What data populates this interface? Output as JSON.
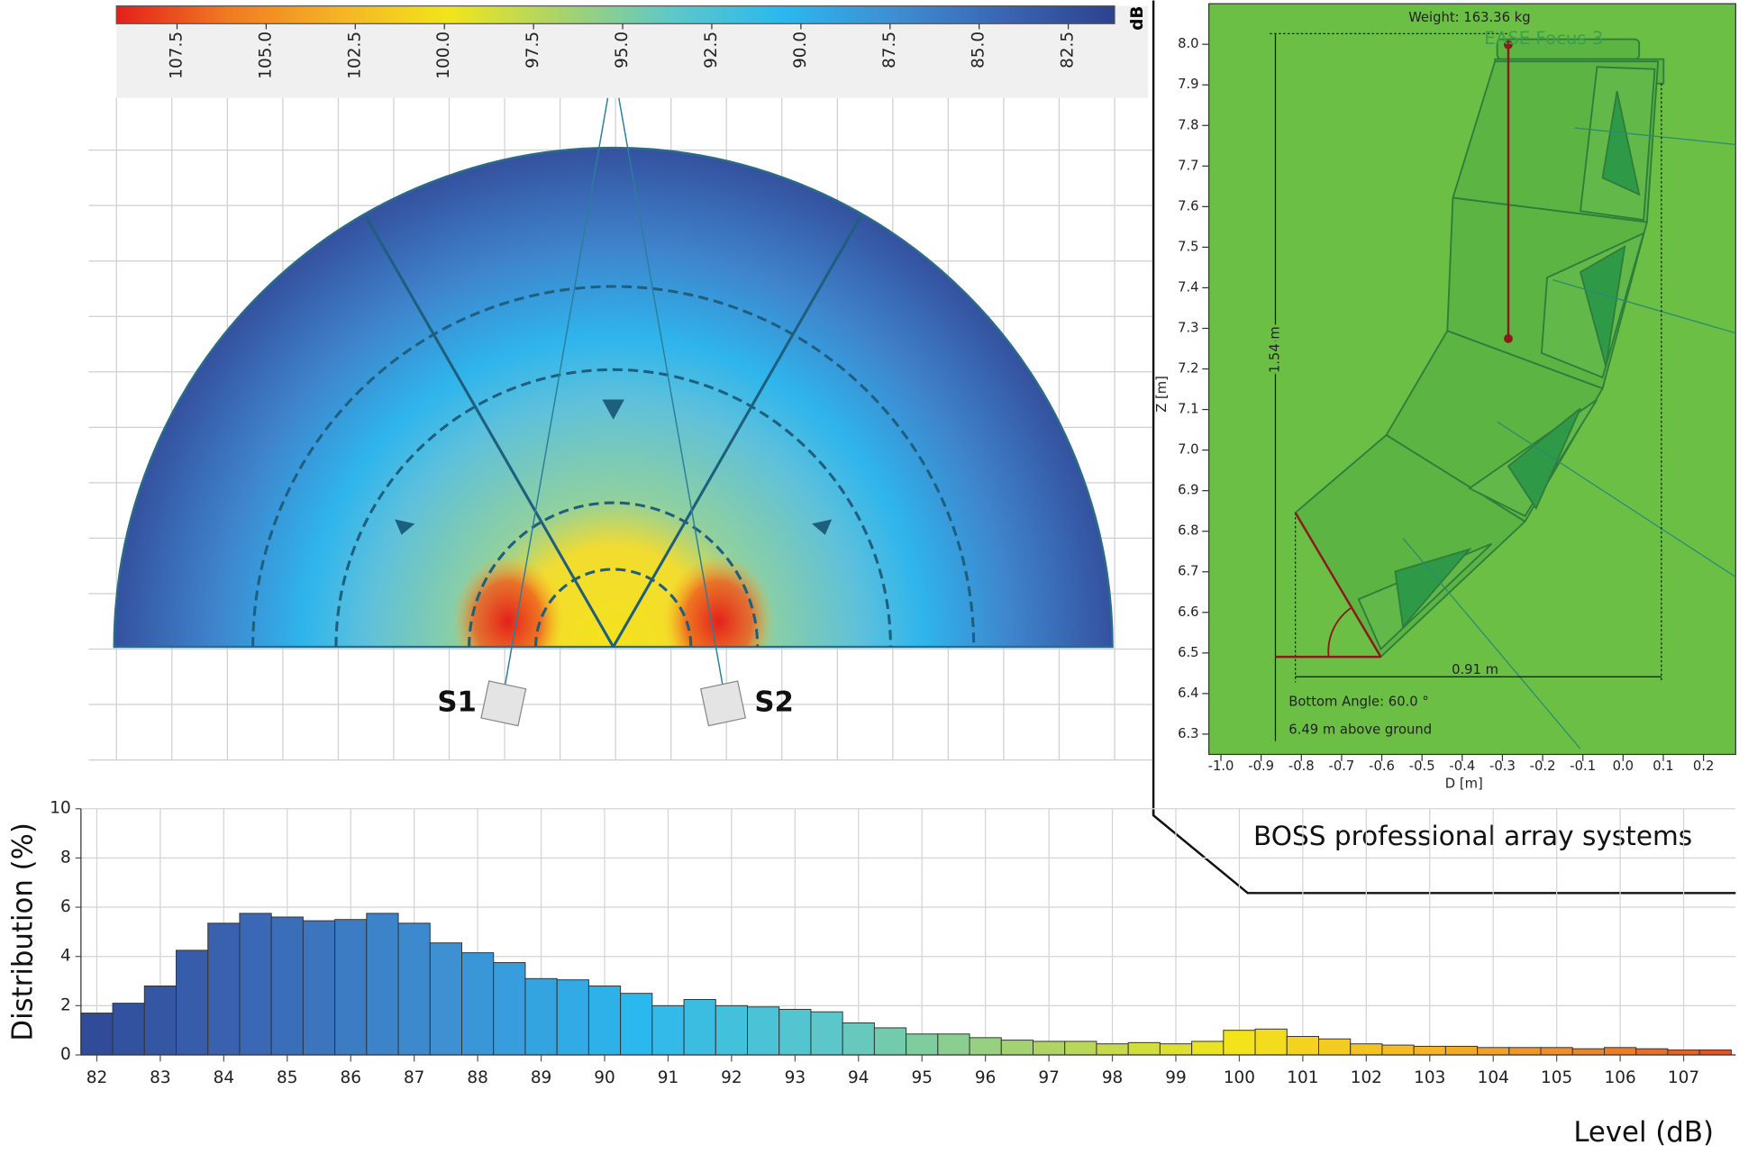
{
  "chart_data": [
    {
      "type": "colorbar",
      "label": "dB",
      "xlim": [
        109.2,
        81.2
      ],
      "xticks": [
        107.5,
        {
          "value": 105,
          "label": "105.0"
        },
        102.5,
        {
          "value": 100,
          "label": "100.0"
        },
        97.5,
        {
          "value": 95,
          "label": "95.0"
        },
        92.5,
        {
          "value": 90,
          "label": "90.0"
        },
        87.5,
        {
          "value": 85,
          "label": "85.0"
        },
        82.5
      ],
      "colors": [
        "#e3201b",
        "#f07a22",
        "#f5b325",
        "#f2e51b",
        "#a9d36a",
        "#5ec8c8",
        "#2bb8ee",
        "#3e8fd2",
        "#3a65b2",
        "#2d428f"
      ]
    },
    {
      "type": "sound-field",
      "labels": [
        "S1",
        "S2"
      ]
    },
    {
      "type": "line",
      "xlabel": "D [m]",
      "ylabel": "Z [m]",
      "xlim": [
        -1.03,
        0.28
      ],
      "ylim": [
        6.25,
        8.1
      ],
      "xticks": [
        {
          "value": -1,
          "label": "-1.0"
        },
        -0.9,
        -0.8,
        -0.7,
        -0.6,
        -0.5,
        -0.4,
        -0.3,
        -0.2,
        -0.1,
        {
          "value": 0,
          "label": "0.0"
        },
        0.1,
        0.2
      ],
      "yticks": [
        6.3,
        6.4,
        6.5,
        6.6,
        6.7,
        6.8,
        6.9,
        {
          "value": 7,
          "label": "7.0"
        },
        7.1,
        7.2,
        7.3,
        7.4,
        7.5,
        7.6,
        7.7,
        7.8,
        7.9,
        {
          "value": 8,
          "label": "8.0"
        }
      ],
      "annotations": [
        "Weight: 163.36 kg",
        "EASE Focus 3",
        "1.54 m",
        "0.91 m",
        "Bottom Angle: 60.0 °",
        "6.49 m above ground"
      ],
      "caption": "BOSS professional array systems",
      "color": "#6cbf45"
    },
    {
      "type": "histogram",
      "xlabel": "Level (dB)",
      "ylabel": "Distribution (%)",
      "grid": true,
      "xlim": [
        81.75,
        107.82
      ],
      "ylim": [
        0,
        10
      ],
      "xticks": [
        82,
        83,
        84,
        85,
        86,
        87,
        88,
        89,
        90,
        91,
        92,
        93,
        94,
        95,
        96,
        97,
        98,
        99,
        100,
        101,
        102,
        103,
        104,
        105,
        106,
        107
      ],
      "yticks": [
        0,
        2,
        4,
        6,
        8,
        10
      ],
      "bins": [
        81.75,
        82.25,
        82.75,
        83.25,
        83.75,
        84.25,
        84.75,
        85.25,
        85.75,
        86.25,
        86.75,
        87.25,
        87.75,
        88.25,
        88.75,
        89.25,
        89.75,
        90.25,
        90.75,
        91.25,
        91.75,
        92.25,
        92.75,
        93.25,
        93.75,
        94.25,
        94.75,
        95.25,
        95.75,
        96.25,
        96.75,
        97.25,
        97.75,
        98.25,
        98.75,
        99.25,
        99.75,
        100.25,
        100.75,
        101.25,
        101.75,
        102.25,
        102.75,
        103.25,
        103.75,
        104.25,
        104.75,
        105.25,
        105.75,
        106.25,
        106.75,
        107.25,
        107.75
      ],
      "values": [
        1.7,
        2.1,
        2.8,
        4.25,
        5.35,
        5.75,
        5.6,
        5.45,
        5.5,
        5.75,
        5.35,
        4.55,
        4.15,
        3.75,
        3.1,
        3.05,
        2.8,
        2.5,
        2.0,
        2.25,
        2.0,
        1.95,
        1.85,
        1.75,
        1.3,
        1.1,
        0.85,
        0.85,
        0.7,
        0.6,
        0.55,
        0.55,
        0.45,
        0.5,
        0.45,
        0.55,
        1.0,
        1.05,
        0.75,
        0.65,
        0.45,
        0.4,
        0.35,
        0.35,
        0.3,
        0.3,
        0.3,
        0.25,
        0.3,
        0.25,
        0.2,
        0.2
      ]
    }
  ]
}
